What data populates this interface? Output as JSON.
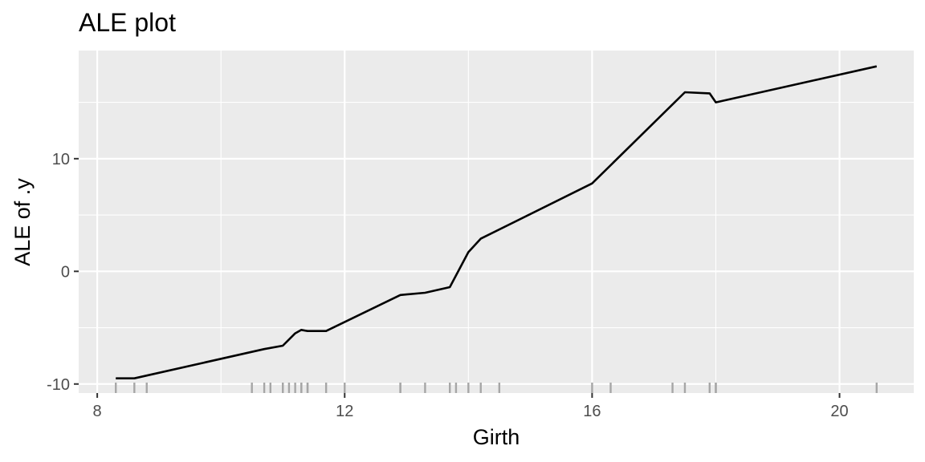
{
  "chart_data": {
    "type": "line",
    "title": "ALE plot",
    "xlabel": "Girth",
    "ylabel": "ALE of .y",
    "xlim": [
      7.7,
      21.2
    ],
    "ylim": [
      -10.8,
      19.6
    ],
    "x_ticks": [
      8,
      12,
      16,
      20
    ],
    "x_tick_labels": [
      "8",
      "12",
      "16",
      "20"
    ],
    "y_ticks": [
      -10,
      0,
      10
    ],
    "y_tick_labels": [
      "-10",
      "0",
      "10"
    ],
    "grid": true,
    "colors": {
      "panel": "#ebebeb",
      "grid": "#ffffff",
      "line": "#000000",
      "rug": "#a6a6a6"
    },
    "series": [
      {
        "x": [
          8.3,
          8.6,
          10.7,
          11.0,
          11.2,
          11.3,
          11.4,
          11.7,
          12.9,
          13.3,
          13.7,
          14.0,
          14.2,
          16.0,
          17.5,
          17.9,
          18.0,
          20.6
        ],
        "y": [
          -9.5,
          -9.5,
          -6.9,
          -6.6,
          -5.5,
          -5.2,
          -5.3,
          -5.3,
          -2.1,
          -1.9,
          -1.4,
          1.7,
          2.9,
          7.8,
          15.9,
          15.8,
          15.0,
          18.2
        ]
      }
    ],
    "rug_x": [
      8.3,
      8.6,
      8.8,
      10.5,
      10.7,
      10.8,
      11.0,
      11.0,
      11.1,
      11.2,
      11.3,
      11.3,
      11.4,
      11.4,
      11.7,
      12.0,
      12.9,
      12.9,
      13.3,
      13.7,
      13.8,
      14.0,
      14.2,
      14.5,
      16.0,
      16.3,
      17.3,
      17.5,
      17.9,
      18.0,
      18.0,
      20.6
    ]
  }
}
